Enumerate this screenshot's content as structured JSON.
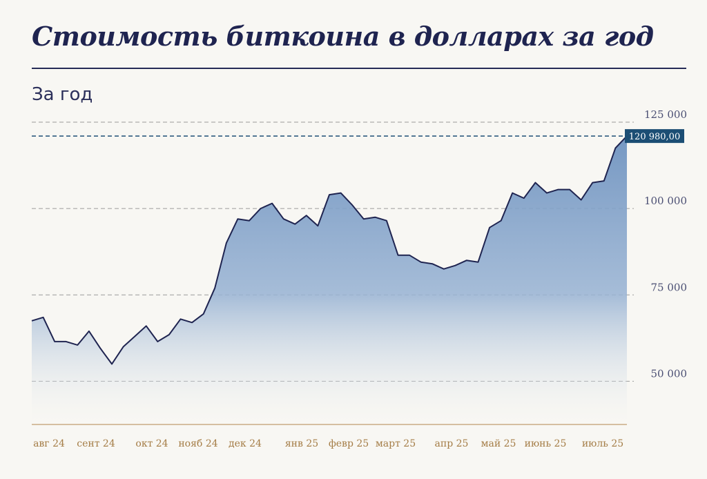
{
  "chart_data": {
    "type": "area",
    "title": "Стоимость биткоина в долларах за год",
    "subtitle": "За год",
    "xlabel": "",
    "ylabel": "",
    "ylim": [
      37500,
      125000
    ],
    "yticks": [
      {
        "value": 125000,
        "label": "125 000"
      },
      {
        "value": 100000,
        "label": "100 000"
      },
      {
        "value": 75000,
        "label": "75 000"
      },
      {
        "value": 50000,
        "label": "50 000"
      }
    ],
    "x_tick_labels": [
      "авг 24",
      "сент 24",
      "окт 24",
      "нояб 24",
      "дек 24",
      "янв 25",
      "февр 25",
      "март 25",
      "апр 25",
      "май 25",
      "июнь 25",
      "июль 25"
    ],
    "current_value": 120980,
    "current_label": "120 980,00",
    "grid": true,
    "colors": {
      "line": "#1f2450",
      "fill": "#7d9ec8",
      "grid": "#9a9a9a",
      "current": "#1c4e74",
      "axis": "#c9ab84"
    },
    "values": [
      67500,
      68500,
      61500,
      61500,
      60500,
      64500,
      59500,
      55000,
      60000,
      63000,
      66000,
      61500,
      63500,
      68000,
      67000,
      69500,
      77000,
      90000,
      97000,
      96500,
      100000,
      101500,
      97000,
      95500,
      98000,
      95000,
      104000,
      104500,
      101000,
      97000,
      97500,
      96500,
      86500,
      86500,
      84500,
      84000,
      82500,
      83500,
      85000,
      84500,
      94500,
      96500,
      104500,
      103000,
      107500,
      104500,
      105500,
      105500,
      102500,
      107500,
      108000,
      117500,
      120980
    ]
  }
}
